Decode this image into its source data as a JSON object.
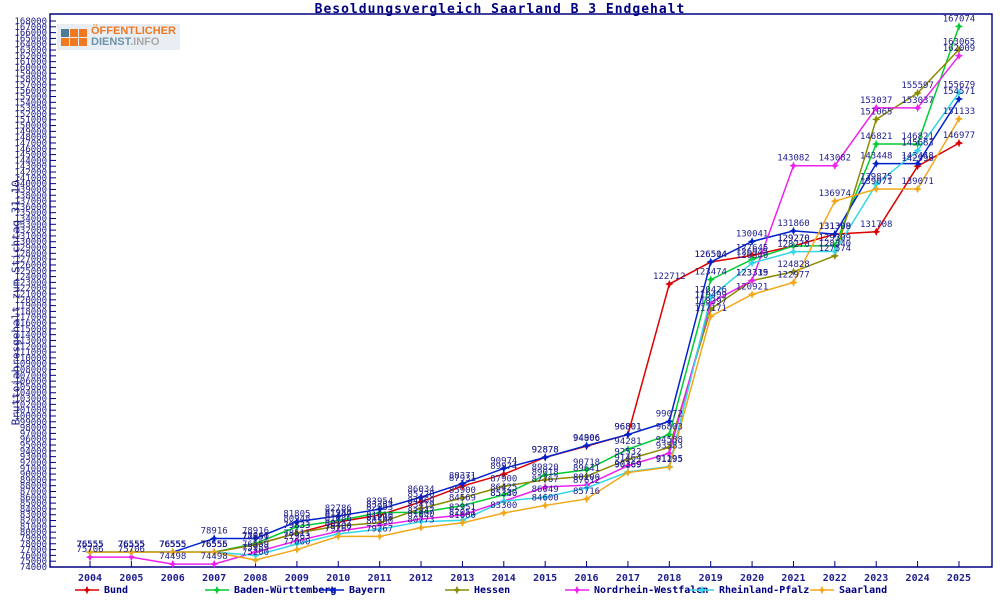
{
  "page": {
    "title": "Besoldungsvergleich Saarland B 3 Endgehalt"
  },
  "logo": {
    "line1": "ÖFFENTLICHER",
    "line2_a": "DIENST",
    "line2_b": ".INFO",
    "orange": "#f07820",
    "teal": "#4d7d96"
  },
  "colors": {
    "frame": "#000080",
    "tick_text": "#202090",
    "point_label": "#202090",
    "axis_label": "#202090"
  },
  "y_axis": {
    "label": "Bruttojahresgehalt zum Stichtag 31.10.",
    "min": 74000,
    "max": 168000,
    "step": 1000
  },
  "chart_data": {
    "type": "line",
    "title": "Besoldungsvergleich Saarland B 3 Endgehalt",
    "xlabel": "",
    "ylabel": "Bruttojahresgehalt zum Stichtag 31.10.",
    "ylim": [
      74000,
      168000
    ],
    "grid": false,
    "legend_position": "bottom",
    "point_labels": true,
    "categories": [
      2004,
      2005,
      2006,
      2007,
      2008,
      2009,
      2010,
      2011,
      2012,
      2013,
      2014,
      2015,
      2016,
      2017,
      2018,
      2019,
      2020,
      2021,
      2022,
      2023,
      2024,
      2025
    ],
    "series": [
      {
        "name": "Bund",
        "color": "#dd0000",
        "values": [
          76555,
          76555,
          76555,
          76556,
          77851,
          79833,
          81747,
          82953,
          85220,
          87931,
          89974,
          92878,
          94806,
          96801,
          122712,
          126504,
          127645,
          129270,
          131308,
          131708,
          142998,
          146977
        ]
      },
      {
        "name": "Baden-Württemberg",
        "color": "#00cc33",
        "values": [
          76555,
          76555,
          76555,
          76555,
          78046,
          80948,
          81986,
          83353,
          83419,
          84569,
          86425,
          89820,
          90718,
          94281,
          96803,
          123474,
          126945,
          129270,
          129309,
          146821,
          146821,
          167074
        ]
      },
      {
        "name": "Bayern",
        "color": "#0022cc",
        "values": [
          76555,
          76555,
          76555,
          78916,
          78916,
          81805,
          82786,
          83954,
          86034,
          88371,
          90974,
          92878,
          94906,
          96801,
          99072,
          126514,
          130041,
          131860,
          131309,
          143448,
          143448,
          154571
        ]
      },
      {
        "name": "Hessen",
        "color": "#8b8b00",
        "values": [
          76555,
          76555,
          76555,
          76555,
          77851,
          79833,
          81086,
          81610,
          84069,
          85900,
          87900,
          89018,
          89641,
          92532,
          94588,
          118397,
          123315,
          124828,
          127574,
          151065,
          155597,
          163065
        ]
      },
      {
        "name": "Nordrhein-Westfalen",
        "color": "#ee22ee",
        "values": [
          75706,
          75706,
          74498,
          74498,
          76559,
          78511,
          80157,
          81200,
          82247,
          82951,
          85340,
          87767,
          88100,
          91464,
          93583,
          119499,
          123339,
          143082,
          143082,
          153037,
          153037,
          162009
        ]
      },
      {
        "name": "Rheinland-Pfalz",
        "color": "#33d6e6",
        "values": [
          76555,
          76555,
          76555,
          76555,
          75989,
          77963,
          79700,
          80500,
          81800,
          82051,
          85330,
          86049,
          87612,
          90369,
          91295,
          120426,
          126340,
          128270,
          128340,
          139875,
          145683,
          155679
        ]
      },
      {
        "name": "Saarland",
        "color": "#f0a818",
        "values": [
          76555,
          76555,
          76555,
          76555,
          75200,
          77000,
          79267,
          79267,
          80773,
          81600,
          83300,
          84600,
          85716,
          90269,
          91195,
          117171,
          120921,
          122977,
          136974,
          139071,
          139071,
          151133
        ]
      }
    ]
  },
  "legend": {
    "entry_x": [
      75,
      205,
      320,
      445,
      565,
      690,
      810
    ]
  }
}
